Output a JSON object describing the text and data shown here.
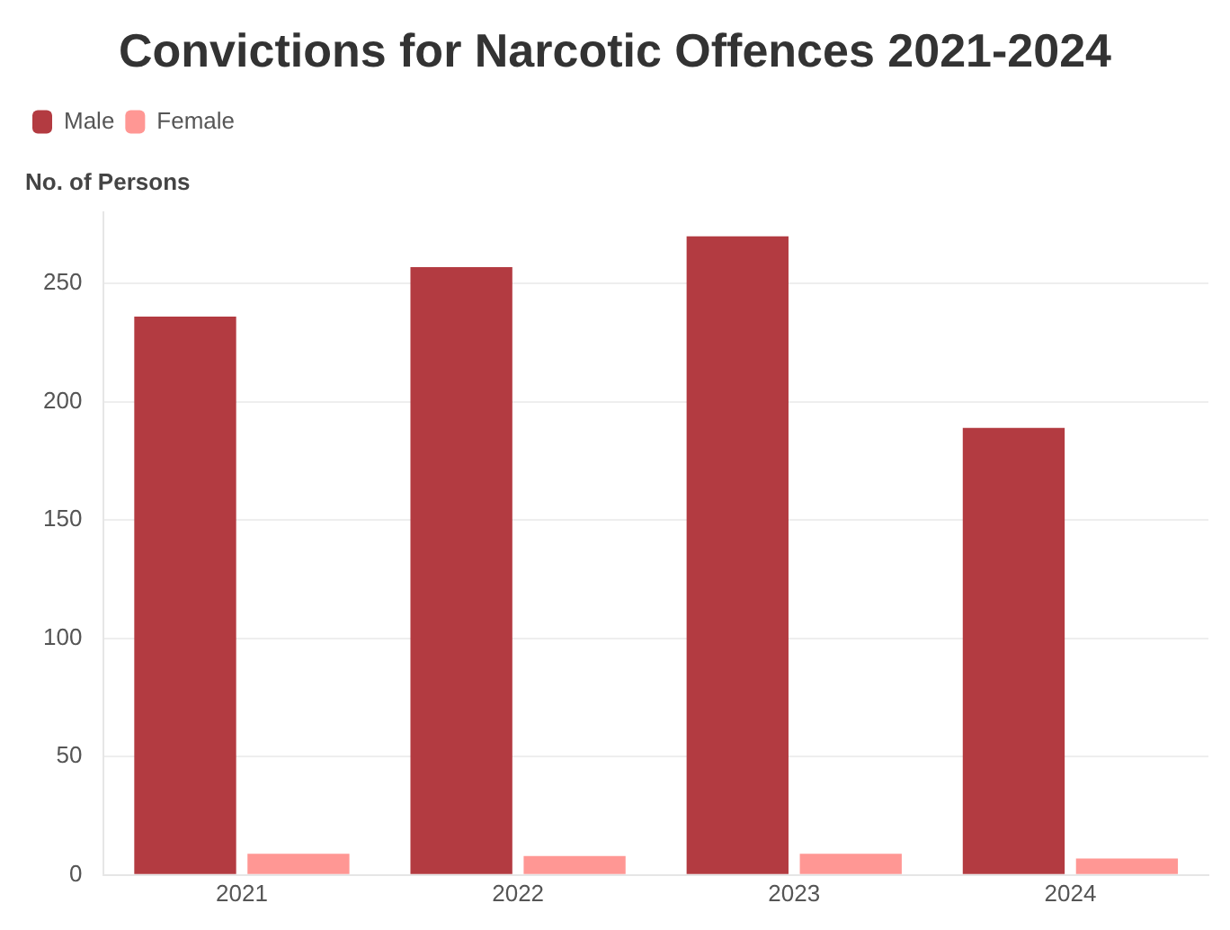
{
  "chart_data": {
    "type": "bar",
    "title": "Convictions for Narcotic Offences 2021-2024",
    "ylabel": "No. of Persons",
    "categories": [
      "2021",
      "2022",
      "2023",
      "2024"
    ],
    "series": [
      {
        "name": "Male",
        "color": "#b33b41",
        "values": [
          236,
          257,
          270,
          189
        ]
      },
      {
        "name": "Female",
        "color": "#ff9794",
        "values": [
          9,
          8,
          9,
          7
        ]
      }
    ],
    "ylim": [
      0,
      280
    ],
    "yticks": [
      0,
      50,
      100,
      150,
      200,
      250
    ],
    "grid": "y",
    "legend": "top left"
  }
}
